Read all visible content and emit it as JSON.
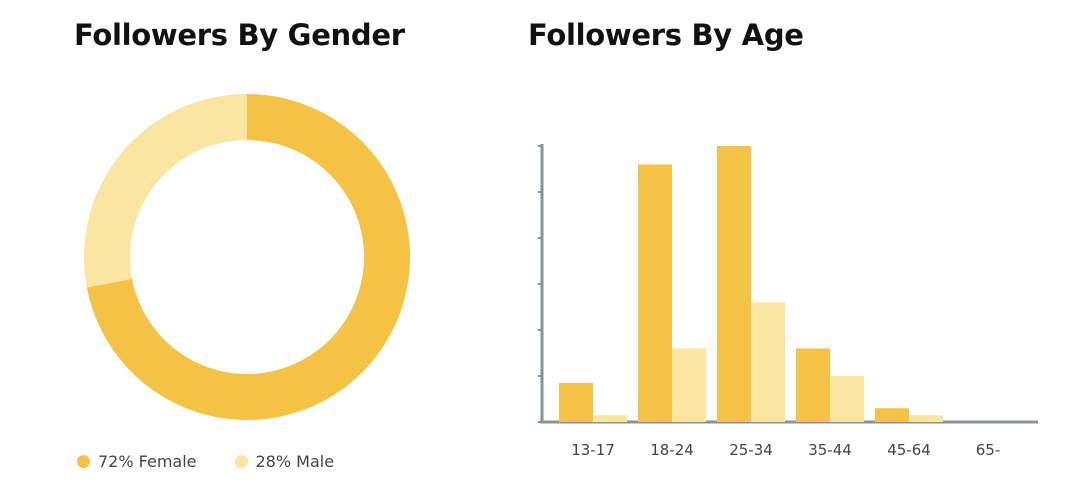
{
  "colors": {
    "female": "#F4C245",
    "male": "#FBE5A3",
    "axis": "#8A9299"
  },
  "gender": {
    "title": "Followers By Gender",
    "legend": [
      {
        "label": "72% Female",
        "color": "#F4C245"
      },
      {
        "label": "28% Male",
        "color": "#FBE5A3"
      }
    ]
  },
  "age": {
    "title": "Followers By Age"
  },
  "chart_data": [
    {
      "type": "pie",
      "title": "Followers By Gender",
      "labels": [
        "Female",
        "Male"
      ],
      "values": [
        72,
        28
      ],
      "unit": "%",
      "donut": true,
      "legend_position": "bottom-left"
    },
    {
      "type": "bar",
      "title": "Followers By Age",
      "categories": [
        "13-17",
        "18-24",
        "25-34",
        "35-44",
        "45-64",
        "65-"
      ],
      "series": [
        {
          "color": "#F4C245",
          "values": [
            0.85,
            5.6,
            6.0,
            1.6,
            0.3,
            0
          ]
        },
        {
          "color": "#FBE5A3",
          "values": [
            0.15,
            1.6,
            2.6,
            1.0,
            0.15,
            0
          ]
        }
      ],
      "ylim": [
        0,
        6
      ],
      "y_ticks": [
        0,
        1,
        2,
        3,
        4,
        5,
        6
      ],
      "y_tick_labels_shown": false,
      "grid": false
    }
  ]
}
